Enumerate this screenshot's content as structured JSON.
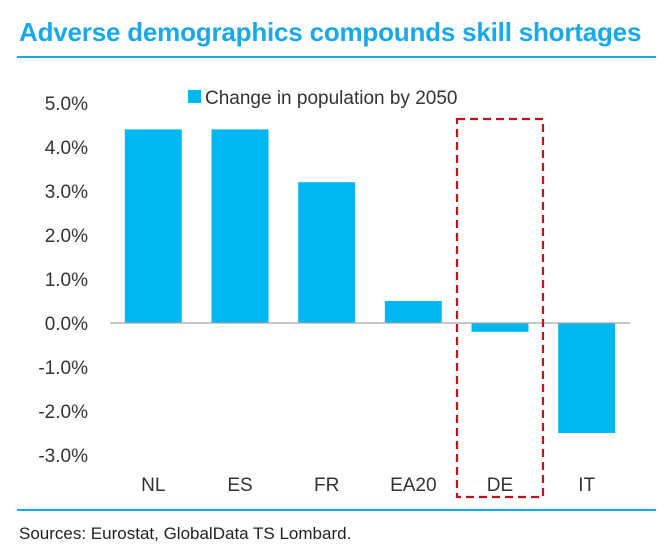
{
  "title": "Adverse demographics compounds skill shortages",
  "source": "Sources: Eurostat, GlobalData TS Lombard.",
  "colors": {
    "accent": "#1aa8e8",
    "bar": "#00b8f1",
    "highlight_box": "#c0141c",
    "axis_text": "#333333"
  },
  "chart_data": {
    "type": "bar",
    "categories": [
      "NL",
      "ES",
      "FR",
      "EA20",
      "DE",
      "IT"
    ],
    "series": [
      {
        "name": "Change in population by 2050",
        "values": [
          4.4,
          4.4,
          3.2,
          0.5,
          -0.2,
          -2.5
        ]
      }
    ],
    "y_ticks": [
      "5.0%",
      "4.0%",
      "3.0%",
      "2.0%",
      "1.0%",
      "0.0%",
      "-1.0%",
      "-2.0%",
      "-3.0%"
    ],
    "ylim": [
      -3.0,
      5.0
    ],
    "legend_position": "top-center",
    "grid": false,
    "highlight": {
      "category": "DE",
      "style": "dashed-red-box"
    }
  }
}
